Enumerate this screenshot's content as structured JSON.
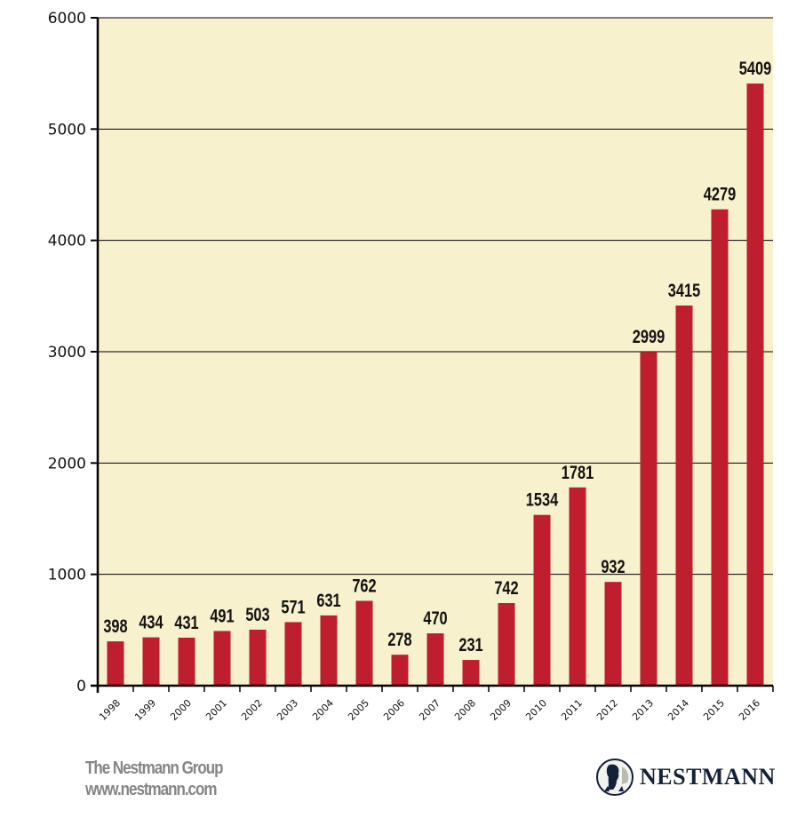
{
  "chart_data": {
    "type": "bar",
    "categories": [
      "1998",
      "1999",
      "2000",
      "2001",
      "2002",
      "2003",
      "2004",
      "2005",
      "2006",
      "2007",
      "2008",
      "2009",
      "2010",
      "2011",
      "2012",
      "2013",
      "2014",
      "2015",
      "2016"
    ],
    "values": [
      398,
      434,
      431,
      491,
      503,
      571,
      631,
      762,
      278,
      470,
      231,
      742,
      1534,
      1781,
      932,
      2999,
      3415,
      4279,
      5409
    ],
    "title": "",
    "xlabel": "",
    "ylabel": "",
    "ylim": [
      0,
      6000
    ],
    "yticks": [
      0,
      1000,
      2000,
      3000,
      4000,
      5000,
      6000
    ],
    "grid": true,
    "data_labels": true,
    "colors": {
      "bar": "#be1e2d",
      "plot_background": "#f7f1cd",
      "grid": "#000000"
    }
  },
  "footer": {
    "company": "The Nestmann Group",
    "website": "www.nestmann.com",
    "logo_text": "NESTMANN"
  }
}
